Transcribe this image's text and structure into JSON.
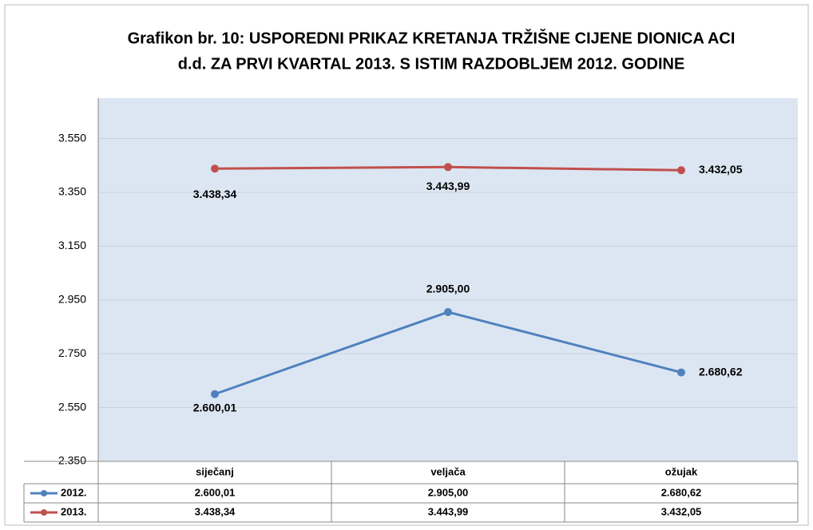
{
  "chart_data": {
    "type": "line",
    "title": [
      "Grafikon br. 10: USPOREDNI PRIKAZ KRETANJA TRŽIŠNE CIJENE DIONICA ACI",
      "d.d. ZA PRVI KVARTAL 2013. S ISTIM RAZDOBLJEM 2012. GODINE"
    ],
    "categories": [
      "siječanj",
      "veljača",
      "ožujak"
    ],
    "series": [
      {
        "name": "2012.",
        "color": "#4f81bd",
        "values": [
          2600.01,
          2905.0,
          2680.62
        ],
        "value_labels": [
          "2.600,01",
          "2.905,00",
          "2.680,62"
        ]
      },
      {
        "name": "2013.",
        "color": "#c0504d",
        "values": [
          3438.34,
          3443.99,
          3432.05
        ],
        "value_labels": [
          "3.438,34",
          "3.443,99",
          "3.432,05"
        ]
      }
    ],
    "ylim": [
      2350,
      3700
    ],
    "yticks": [
      {
        "value": 2350,
        "label": "2.350"
      },
      {
        "value": 2550,
        "label": "2.550"
      },
      {
        "value": 2750,
        "label": "2.750"
      },
      {
        "value": 2950,
        "label": "2.950"
      },
      {
        "value": 3150,
        "label": "3.150"
      },
      {
        "value": 3350,
        "label": "3.350"
      },
      {
        "value": 3550,
        "label": "3.550"
      }
    ],
    "grid": true
  }
}
